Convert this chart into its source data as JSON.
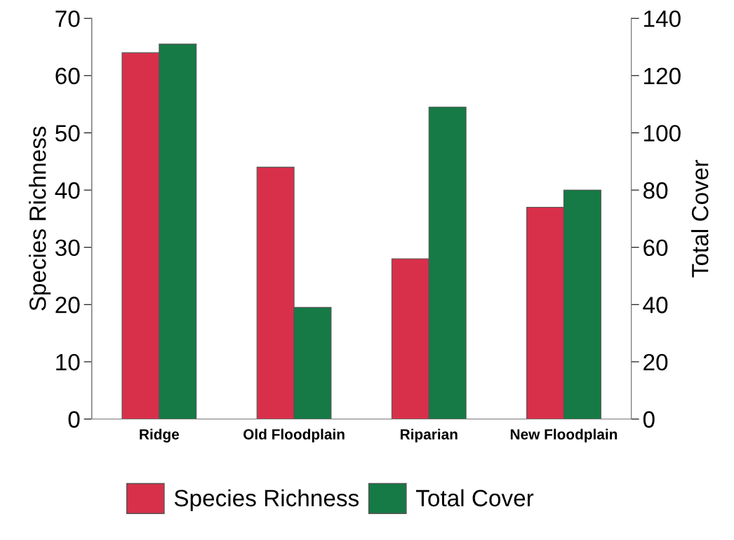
{
  "chart_data": {
    "type": "bar",
    "categories": [
      "Ridge",
      "Old Floodplain",
      "Riparian",
      "New Floodplain"
    ],
    "series": [
      {
        "name": "Species Richness",
        "color": "#d8304a",
        "values": [
          64,
          44,
          28,
          37
        ]
      },
      {
        "name": "Total Cover",
        "color": "#157a45",
        "values": [
          131,
          39,
          109,
          80
        ],
        "axis": "y2"
      }
    ],
    "ylabel": "Species Richness",
    "y2label": "Total Cover",
    "ylim": [
      0,
      70
    ],
    "yticks": [
      0,
      10,
      20,
      30,
      40,
      50,
      60,
      70
    ],
    "y2lim": [
      0,
      140
    ],
    "y2ticks": [
      0,
      20,
      40,
      60,
      80,
      100,
      120,
      140
    ],
    "grid": false,
    "legend": "bottom"
  }
}
